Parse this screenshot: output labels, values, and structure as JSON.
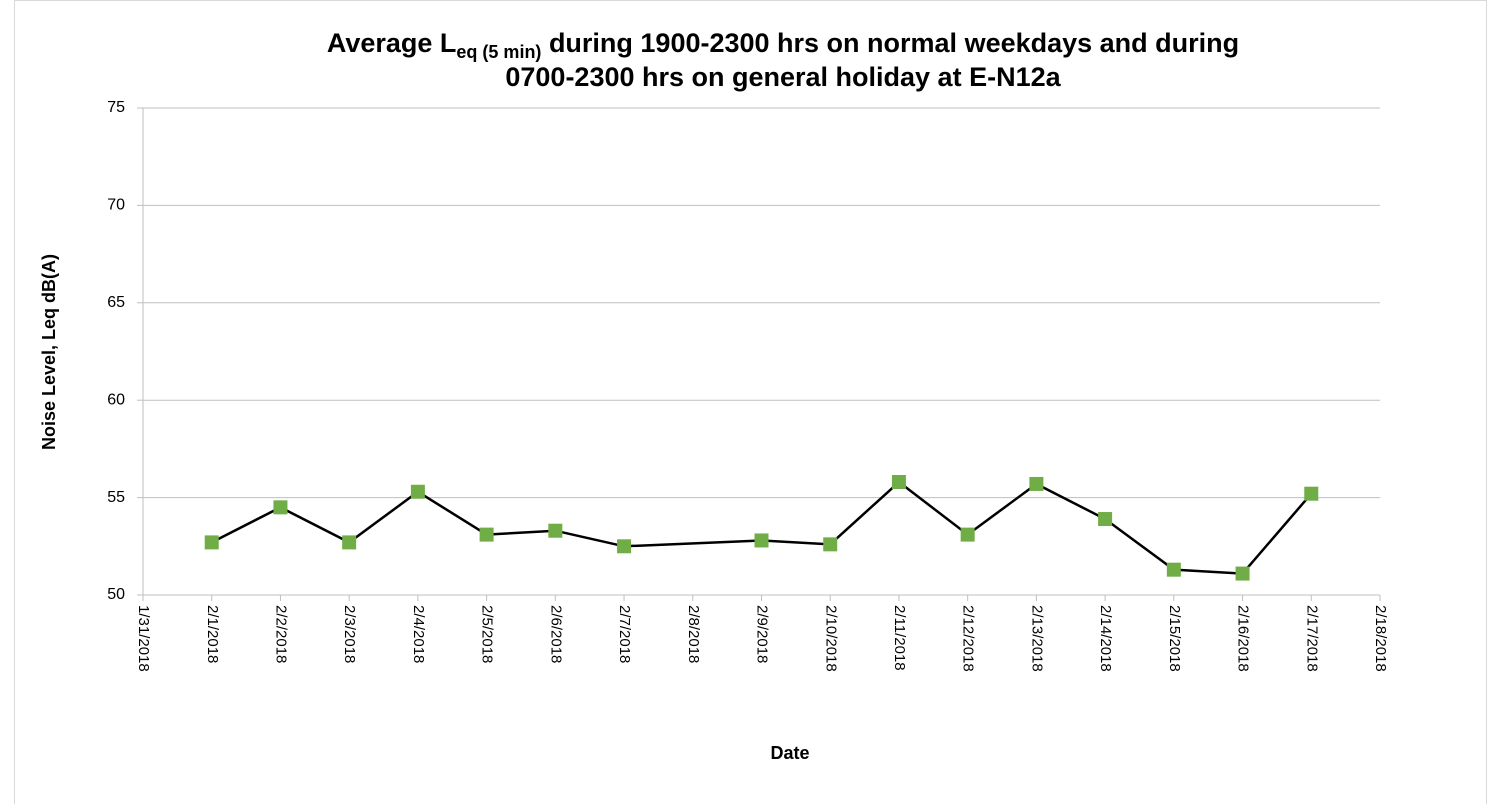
{
  "chart_data": {
    "type": "line",
    "title": [
      "Average L",
      "eq (5 min)",
      " during 1900-2300 hrs on normal weekdays and  during",
      "0700-2300 hrs on general holiday at E-N12a"
    ],
    "x_label": "Date",
    "y_label": "Noise Level, Leq dB(A)",
    "x": [
      "2/1/2018",
      "2/2/2018",
      "2/3/2018",
      "2/4/2018",
      "2/5/2018",
      "2/6/2018",
      "2/7/2018",
      "2/9/2018",
      "2/10/2018",
      "2/11/2018",
      "2/12/2018",
      "2/13/2018",
      "2/14/2018",
      "2/15/2018",
      "2/16/2018",
      "2/17/2018"
    ],
    "values": [
      52.7,
      54.5,
      52.7,
      55.3,
      53.1,
      53.3,
      52.5,
      52.8,
      52.6,
      55.8,
      53.1,
      55.7,
      53.9,
      51.3,
      51.1,
      55.2
    ],
    "line_color": "#000000",
    "marker_color": "#70ad47",
    "xlim": [
      "1/31/2018",
      "2/18/2018"
    ],
    "xticks": [
      "1/31/2018",
      "2/1/2018",
      "2/2/2018",
      "2/3/2018",
      "2/4/2018",
      "2/5/2018",
      "2/6/2018",
      "2/7/2018",
      "2/8/2018",
      "2/9/2018",
      "2/10/2018",
      "2/11/2018",
      "2/12/2018",
      "2/13/2018",
      "2/14/2018",
      "2/15/2018",
      "2/16/2018",
      "2/17/2018",
      "2/18/2018"
    ],
    "ylim": [
      50,
      75
    ],
    "yticks": [
      50,
      55,
      60,
      65,
      70,
      75
    ],
    "grid": true
  }
}
